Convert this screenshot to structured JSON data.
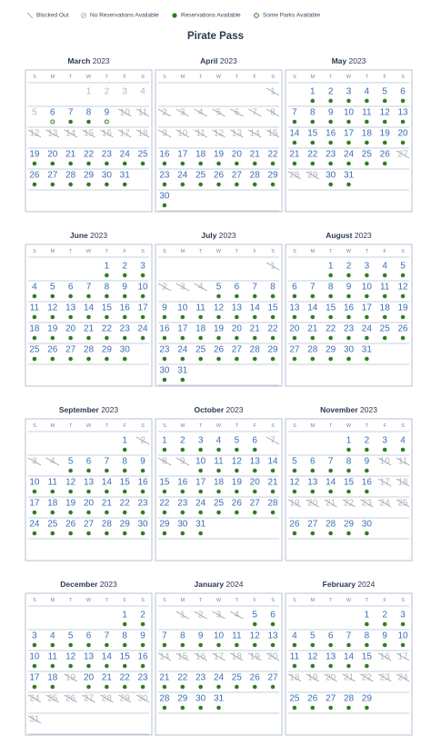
{
  "legend": {
    "blocked": "Blocked Out",
    "none": "No Reservations Available",
    "available": "Reservations Available",
    "some": "Some Parks Available"
  },
  "title": "Pirate Pass",
  "weekdays": [
    "S",
    "M",
    "T",
    "W",
    "T",
    "F",
    "S"
  ],
  "months": [
    {
      "month": "March",
      "year": "2023",
      "weeks": [
        [
          null,
          null,
          null,
          1,
          2,
          3,
          4
        ],
        [
          5,
          6,
          7,
          8,
          9,
          10,
          11
        ],
        [
          12,
          13,
          14,
          15,
          16,
          17,
          18
        ],
        [
          19,
          20,
          21,
          22,
          23,
          24,
          25
        ],
        [
          26,
          27,
          28,
          29,
          30,
          31,
          null
        ]
      ],
      "status": "nnnnnsaasbbbbbbbbbaaaaaaaaaaaaa"
    },
    {
      "month": "April",
      "year": "2023",
      "weeks": [
        [
          null,
          null,
          null,
          null,
          null,
          null,
          1
        ],
        [
          2,
          3,
          4,
          5,
          6,
          7,
          8
        ],
        [
          9,
          10,
          11,
          12,
          13,
          14,
          15
        ],
        [
          16,
          17,
          18,
          19,
          20,
          21,
          22
        ],
        [
          23,
          24,
          25,
          26,
          27,
          28,
          29
        ],
        [
          30,
          null,
          null,
          null,
          null,
          null,
          null
        ]
      ],
      "status": "bbbbbbbbbbbbbbbaaaaaaaaaaaaaaa"
    },
    {
      "month": "May",
      "year": "2023",
      "weeks": [
        [
          null,
          1,
          2,
          3,
          4,
          5,
          6
        ],
        [
          7,
          8,
          9,
          10,
          11,
          12,
          13
        ],
        [
          14,
          15,
          16,
          17,
          18,
          19,
          20
        ],
        [
          21,
          22,
          23,
          24,
          25,
          26,
          27
        ],
        [
          28,
          29,
          30,
          31,
          null,
          null,
          null
        ]
      ],
      "status": "aaaaaaaaaaaaaaaaaaaaaaaaaabbbaa"
    },
    {
      "month": "June",
      "year": "2023",
      "weeks": [
        [
          null,
          null,
          null,
          null,
          1,
          2,
          3
        ],
        [
          4,
          5,
          6,
          7,
          8,
          9,
          10
        ],
        [
          11,
          12,
          13,
          14,
          15,
          16,
          17
        ],
        [
          18,
          19,
          20,
          21,
          22,
          23,
          24
        ],
        [
          25,
          26,
          27,
          28,
          29,
          30,
          null
        ]
      ],
      "status": "aaaaaaaaaaaaaaaaaaaaaaaaaaaaaa"
    },
    {
      "month": "July",
      "year": "2023",
      "weeks": [
        [
          null,
          null,
          null,
          null,
          null,
          null,
          1
        ],
        [
          2,
          3,
          4,
          5,
          6,
          7,
          8
        ],
        [
          9,
          10,
          11,
          12,
          13,
          14,
          15
        ],
        [
          16,
          17,
          18,
          19,
          20,
          21,
          22
        ],
        [
          23,
          24,
          25,
          26,
          27,
          28,
          29
        ],
        [
          30,
          31,
          null,
          null,
          null,
          null,
          null
        ]
      ],
      "status": "bbbbaaaaaaaaaaaaaaaaaaaaaaaaaaa"
    },
    {
      "month": "August",
      "year": "2023",
      "weeks": [
        [
          null,
          null,
          1,
          2,
          3,
          4,
          5
        ],
        [
          6,
          7,
          8,
          9,
          10,
          11,
          12
        ],
        [
          13,
          14,
          15,
          16,
          17,
          18,
          19
        ],
        [
          20,
          21,
          22,
          23,
          24,
          25,
          26
        ],
        [
          27,
          28,
          29,
          30,
          31,
          null,
          null
        ]
      ],
      "status": "aaaaaaaaaaaaaaaaaaaaaaaaaaaaaaa"
    },
    {
      "month": "September",
      "year": "2023",
      "weeks": [
        [
          null,
          null,
          null,
          null,
          null,
          1,
          2
        ],
        [
          3,
          4,
          5,
          6,
          7,
          8,
          9
        ],
        [
          10,
          11,
          12,
          13,
          14,
          15,
          16
        ],
        [
          17,
          18,
          19,
          20,
          21,
          22,
          23
        ],
        [
          24,
          25,
          26,
          27,
          28,
          29,
          30
        ]
      ],
      "status": "abbbaaaaaaaaaaaaaaaaaaaaaaaaaa"
    },
    {
      "month": "October",
      "year": "2023",
      "weeks": [
        [
          1,
          2,
          3,
          4,
          5,
          6,
          7
        ],
        [
          8,
          9,
          10,
          11,
          12,
          13,
          14
        ],
        [
          15,
          16,
          17,
          18,
          19,
          20,
          21
        ],
        [
          22,
          23,
          24,
          25,
          26,
          27,
          28
        ],
        [
          29,
          30,
          31,
          null,
          null,
          null,
          null
        ]
      ],
      "status": "aaaaaabbbaaaaaaaaaaaaaaaaaaaaaa"
    },
    {
      "month": "November",
      "year": "2023",
      "weeks": [
        [
          null,
          null,
          null,
          1,
          2,
          3,
          4
        ],
        [
          5,
          6,
          7,
          8,
          9,
          10,
          11
        ],
        [
          12,
          13,
          14,
          15,
          16,
          17,
          18
        ],
        [
          19,
          20,
          21,
          22,
          23,
          24,
          25
        ],
        [
          26,
          27,
          28,
          29,
          30,
          null,
          null
        ]
      ],
      "status": "aaaaaaaaabbaaaaabbbbbbbbbaaaaa"
    },
    {
      "month": "December",
      "year": "2023",
      "weeks": [
        [
          null,
          null,
          null,
          null,
          null,
          1,
          2
        ],
        [
          3,
          4,
          5,
          6,
          7,
          8,
          9
        ],
        [
          10,
          11,
          12,
          13,
          14,
          15,
          16
        ],
        [
          17,
          18,
          19,
          20,
          21,
          22,
          23
        ],
        [
          24,
          25,
          26,
          27,
          28,
          29,
          30
        ],
        [
          31,
          null,
          null,
          null,
          null,
          null,
          null
        ]
      ],
      "status": "aaaaaaaaaaaaaaaaaabaaaabbbbbbbb"
    },
    {
      "month": "January",
      "year": "2024",
      "weeks": [
        [
          null,
          1,
          2,
          3,
          4,
          5,
          6
        ],
        [
          7,
          8,
          9,
          10,
          11,
          12,
          13
        ],
        [
          14,
          15,
          16,
          17,
          18,
          19,
          20
        ],
        [
          21,
          22,
          23,
          24,
          25,
          26,
          27
        ],
        [
          28,
          29,
          30,
          31,
          null,
          null,
          null
        ]
      ],
      "status": "bbbbaaaaaaaaabbbbbbbaaaaaaaaaaa"
    },
    {
      "month": "February",
      "year": "2024",
      "weeks": [
        [
          null,
          null,
          null,
          null,
          1,
          2,
          3
        ],
        [
          4,
          5,
          6,
          7,
          8,
          9,
          10
        ],
        [
          11,
          12,
          13,
          14,
          15,
          16,
          17
        ],
        [
          18,
          19,
          20,
          21,
          22,
          23,
          24
        ],
        [
          25,
          26,
          27,
          28,
          29,
          null,
          null
        ]
      ],
      "status": "aaaaaaaaaaaaaaabbbbbbbbbaaaaa"
    }
  ]
}
